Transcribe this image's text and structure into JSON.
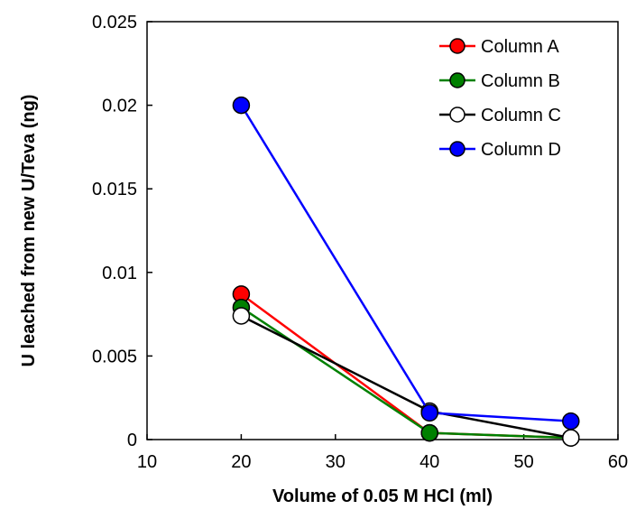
{
  "chart_data": {
    "type": "line",
    "xlabel": "Volume of 0.05 M HCl  (ml)",
    "ylabel": "U leached from new U/Teva (ng)",
    "xlim": [
      10,
      60
    ],
    "ylim": [
      0,
      0.025
    ],
    "x_ticks": [
      10,
      20,
      30,
      40,
      50,
      60
    ],
    "y_ticks": [
      0,
      0.005,
      0.01,
      0.015,
      0.02,
      0.025
    ],
    "x_tick_labels": [
      "10",
      "20",
      "30",
      "40",
      "50",
      "60"
    ],
    "y_tick_labels": [
      "0",
      "0.005",
      "0.01",
      "0.015",
      "0.02",
      "0.025"
    ],
    "grid": false,
    "legend_position": "top-right",
    "series": [
      {
        "name": "Column A",
        "line_color": "#ff0000",
        "fill": "#ff0000",
        "x": [
          20,
          40,
          55
        ],
        "y": [
          0.0087,
          0.0004,
          0.0001
        ]
      },
      {
        "name": "Column B",
        "line_color": "#008000",
        "fill": "#008000",
        "x": [
          20,
          40,
          55
        ],
        "y": [
          0.0079,
          0.0004,
          0.0001
        ]
      },
      {
        "name": "Column C",
        "line_color": "#000000",
        "fill": "#ffffff",
        "x": [
          20,
          40,
          55
        ],
        "y": [
          0.0074,
          0.0017,
          0.0001
        ]
      },
      {
        "name": "Column D",
        "line_color": "#0000ff",
        "fill": "#0000ff",
        "x": [
          20,
          40,
          55
        ],
        "y": [
          0.02,
          0.0016,
          0.0011
        ]
      }
    ]
  }
}
